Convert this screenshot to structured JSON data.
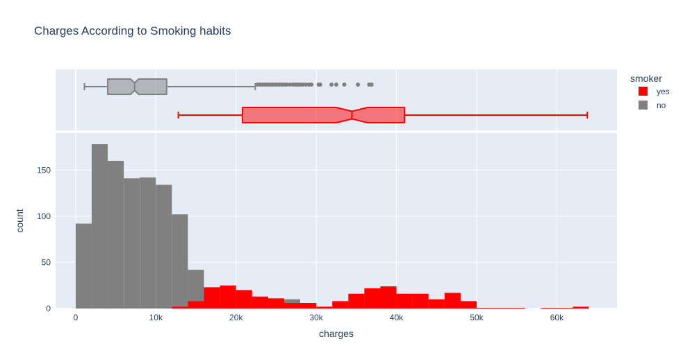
{
  "chart_data": {
    "type": "histogram",
    "title": "Charges According to Smoking habits",
    "xlabel": "charges",
    "ylabel": "count",
    "xlim": [
      -2500,
      67500
    ],
    "ylim": [
      0,
      190
    ],
    "x_ticks": [
      0,
      10000,
      20000,
      30000,
      40000,
      50000,
      60000
    ],
    "x_tick_labels": [
      "0",
      "10k",
      "20k",
      "30k",
      "40k",
      "50k",
      "60k"
    ],
    "y_ticks": [
      0,
      50,
      100,
      150
    ],
    "y_tick_labels": [
      "0",
      "50",
      "100",
      "150"
    ],
    "bin_width": 2000,
    "bins_start": [
      0,
      2000,
      4000,
      6000,
      8000,
      10000,
      12000,
      14000,
      16000,
      18000,
      20000,
      22000,
      24000,
      26000,
      28000,
      30000,
      32000,
      34000,
      36000,
      38000,
      40000,
      42000,
      44000,
      46000,
      48000,
      50000,
      52000,
      54000,
      56000,
      58000,
      60000,
      62000
    ],
    "grid": true,
    "legend": {
      "title": "smoker",
      "position": "top-right"
    },
    "series": [
      {
        "name": "no",
        "color": "#808080",
        "values": [
          92,
          178,
          160,
          141,
          142,
          134,
          102,
          42,
          12,
          12,
          11,
          8,
          10,
          10,
          4,
          0,
          1,
          2,
          1,
          0,
          0,
          0,
          0,
          0,
          0,
          0,
          0,
          0,
          0,
          0,
          0,
          0
        ]
      },
      {
        "name": "yes",
        "color": "#ff0000",
        "values": [
          0,
          0,
          0,
          0,
          0,
          0,
          2,
          8,
          23,
          25,
          20,
          13,
          11,
          6,
          6,
          2,
          8,
          16,
          22,
          24,
          16,
          16,
          10,
          17,
          8,
          0,
          0,
          0,
          0,
          0,
          0,
          2
        ]
      }
    ],
    "boxplots": [
      {
        "name": "no",
        "color": "#808080",
        "fill": "rgba(128,128,128,0.5)",
        "min": 1100,
        "q1": 4000,
        "median": 7350,
        "q3": 11350,
        "max": 22400,
        "notch_low": 6850,
        "notch_high": 7850,
        "outliers": [
          22700,
          23000,
          23300,
          23600,
          23900,
          24200,
          24500,
          24800,
          25100,
          25400,
          25700,
          26000,
          26300,
          26700,
          27100,
          27400,
          27700,
          28000,
          28300,
          28700,
          29100,
          29400,
          30300,
          30500,
          31900,
          32500,
          33500,
          35200,
          36600,
          36900
        ]
      },
      {
        "name": "yes",
        "color": "#ff0000",
        "fill": "rgba(255,0,0,0.5)",
        "min": 12800,
        "q1": 20800,
        "median": 34450,
        "q3": 41000,
        "max": 63800,
        "notch_low": 32500,
        "notch_high": 36400,
        "outliers": []
      }
    ]
  }
}
